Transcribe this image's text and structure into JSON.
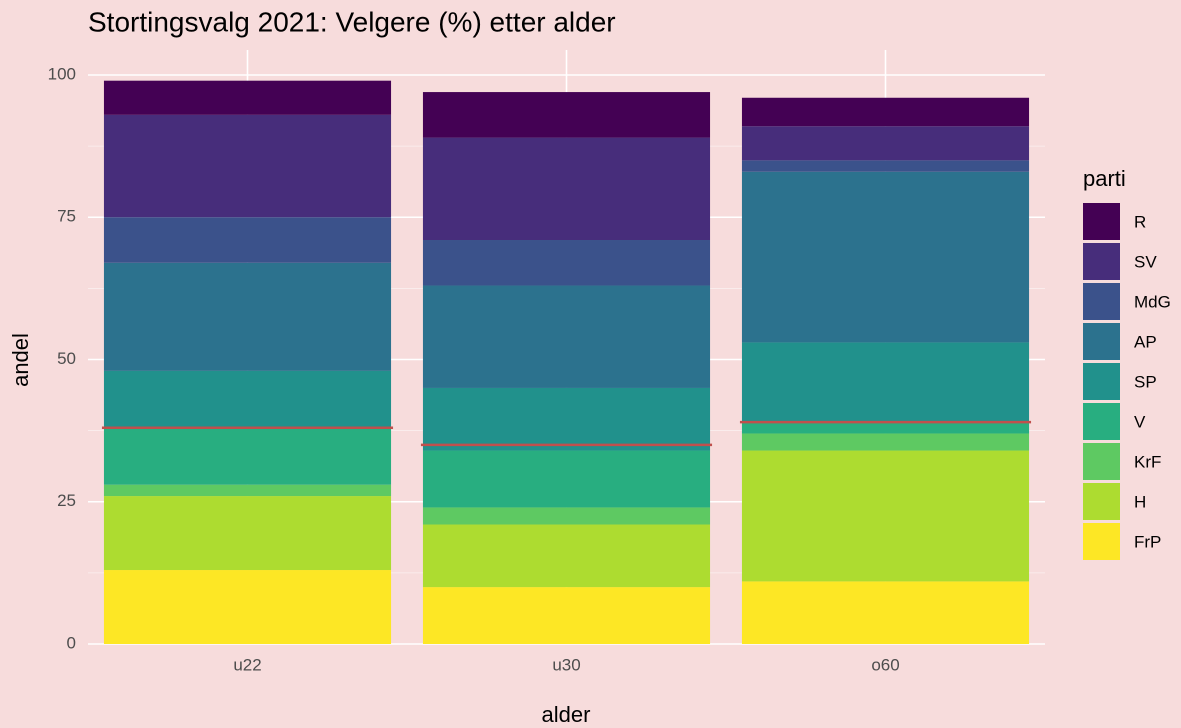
{
  "chart_data": {
    "type": "stacked_bar",
    "title": "Stortingsvalg 2021: Velgere (%) etter alder",
    "x_label": "alder",
    "y_label": "andel",
    "legend_title": "parti",
    "categories": [
      "u22",
      "u30",
      "o60"
    ],
    "series": [
      {
        "name": "R",
        "color": "#440154",
        "values": [
          6,
          8,
          5
        ]
      },
      {
        "name": "SV",
        "color": "#472d7b",
        "values": [
          18,
          18,
          6
        ]
      },
      {
        "name": "MdG",
        "color": "#3b528b",
        "values": [
          8,
          8,
          2
        ]
      },
      {
        "name": "AP",
        "color": "#2c728e",
        "values": [
          19,
          18,
          30
        ]
      },
      {
        "name": "SP",
        "color": "#21918c",
        "values": [
          10,
          11,
          14
        ]
      },
      {
        "name": "V",
        "color": "#28ae80",
        "values": [
          10,
          10,
          2
        ]
      },
      {
        "name": "KrF",
        "color": "#5ec962",
        "values": [
          2,
          3,
          3
        ]
      },
      {
        "name": "H",
        "color": "#addc30",
        "values": [
          13,
          11,
          23
        ]
      },
      {
        "name": "FrP",
        "color": "#fde725",
        "values": [
          13,
          10,
          11
        ]
      }
    ],
    "reference_values": [
      38,
      35,
      39
    ],
    "reference_color": "#c0504d",
    "ylim": [
      0,
      100
    ],
    "yticks": [
      0,
      25,
      50,
      75,
      100
    ],
    "grid": true,
    "legend": "right"
  }
}
